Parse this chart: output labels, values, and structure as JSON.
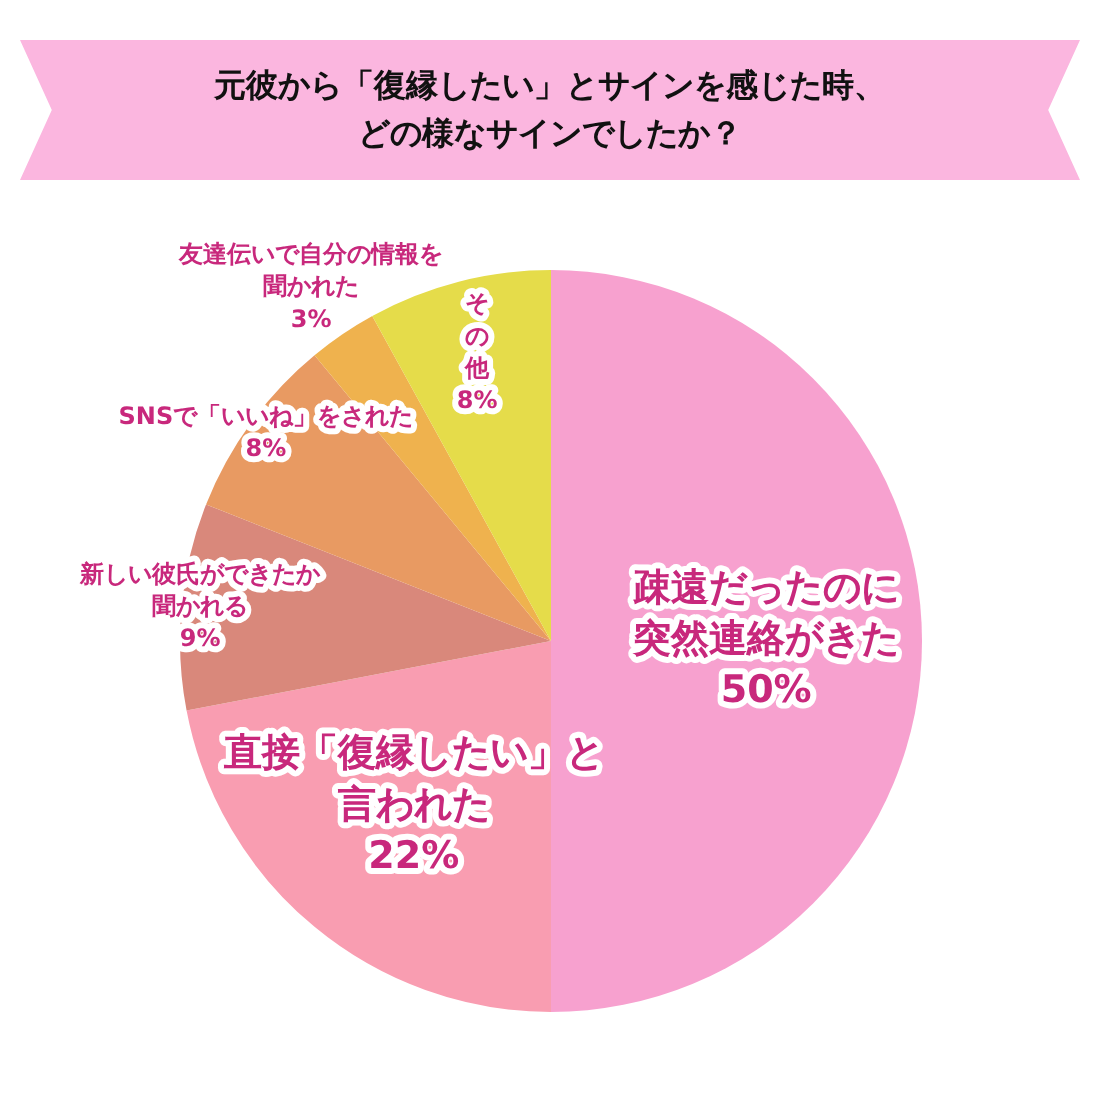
{
  "chart_data": {
    "type": "pie",
    "title": "元彼から「復縁したい」とサインを感じた時、どの様なサインでしたか？",
    "categories": [
      "疎遠だったのに突然連絡がきた",
      "直接「復縁したい」と言われた",
      "新しい彼氏ができたか聞かれる",
      "SNSで「いいね」をされた",
      "友達伝いで自分の情報を聞かれた",
      "その他"
    ],
    "values": [
      50,
      22,
      9,
      8,
      3,
      8
    ],
    "colors": [
      "#f7a1cf",
      "#f99db1",
      "#d9887b",
      "#e89a62",
      "#efb24e",
      "#e5dc4a"
    ],
    "value_labels": [
      "50%",
      "22%",
      "9%",
      "8%",
      "3%",
      "8%"
    ],
    "legend": false
  }
}
